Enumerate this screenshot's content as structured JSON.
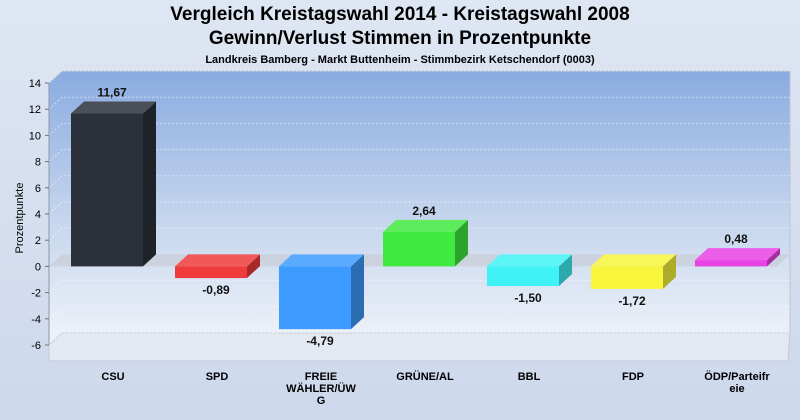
{
  "chart_data": {
    "type": "bar",
    "title": "Vergleich Kreistagswahl 2014 - Kreistagswahl 2008",
    "subtitle": "Gewinn/Verlust Stimmen in Prozentpunkte",
    "caption": "Landkreis Bamberg - Markt Buttenheim - Stimmbezirk Ketschendorf (0003)",
    "ylabel": "Prozentpunkte",
    "xlabel": "",
    "ylim": [
      -6,
      14
    ],
    "yticks": [
      -6,
      -4,
      -2,
      0,
      2,
      4,
      6,
      8,
      10,
      12,
      14
    ],
    "grid": true,
    "categories": [
      [
        "CSU"
      ],
      [
        "SPD"
      ],
      [
        "FREIE",
        "WÄHLER/ÜW",
        "G"
      ],
      [
        "GRÜNE/AL"
      ],
      [
        "BBL"
      ],
      [
        "FDP"
      ],
      [
        "ÖDP/Parteifr",
        "eie"
      ]
    ],
    "values": [
      11.67,
      -0.89,
      -4.79,
      2.64,
      -1.5,
      -1.72,
      0.48
    ],
    "value_labels": [
      "11,67",
      "-0,89",
      "-4,79",
      "2,64",
      "-1,50",
      "-1,72",
      "0,48"
    ],
    "colors": [
      "#2b303b",
      "#ef3b3b",
      "#3d9bff",
      "#3fe93f",
      "#3ff2f5",
      "#f7f53c",
      "#e942e4"
    ]
  }
}
